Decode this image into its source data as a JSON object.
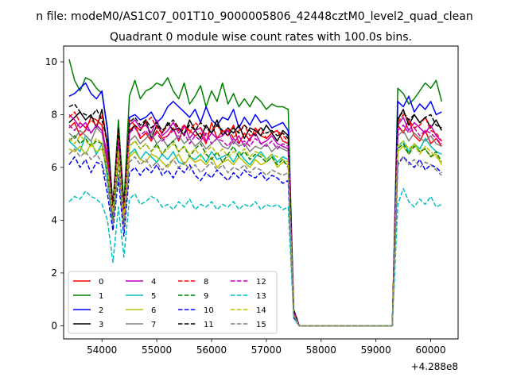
{
  "chart_data": {
    "type": "line",
    "suptitle": "n file: modeM0/AS1C07_001T10_9000005806_42448cztM0_level2_quad_clean",
    "title": "Quadrant 0 module wise count rates with 100.0s bins.",
    "x_offset_label": "+4.288e8",
    "xlim": [
      53300,
      60500
    ],
    "ylim": [
      -0.5,
      10.6
    ],
    "xticks": [
      54000,
      55000,
      56000,
      57000,
      58000,
      59000,
      60000
    ],
    "yticks": [
      0,
      2,
      4,
      6,
      8,
      10
    ],
    "xtick_labels": [
      "54000",
      "55000",
      "56000",
      "57000",
      "58000",
      "59000",
      "60000"
    ],
    "ytick_labels": [
      "0",
      "2",
      "4",
      "6",
      "8",
      "10"
    ],
    "legend_position": "lower-left",
    "x": [
      53400,
      53500,
      53600,
      53700,
      53800,
      53900,
      54000,
      54100,
      54200,
      54300,
      54400,
      54500,
      54600,
      54700,
      54800,
      54900,
      55000,
      55100,
      55200,
      55300,
      55400,
      55500,
      55600,
      55700,
      55800,
      55900,
      56000,
      56100,
      56200,
      56300,
      56400,
      56500,
      56600,
      56700,
      56800,
      56900,
      57000,
      57100,
      57200,
      57300,
      57400,
      57500,
      57600,
      57700,
      57800,
      57900,
      58000,
      58100,
      58200,
      58300,
      58400,
      58500,
      58600,
      58700,
      58800,
      58900,
      59000,
      59100,
      59200,
      59300,
      59400,
      59500,
      59600,
      59700,
      59800,
      59900,
      60000,
      60100,
      60200
    ],
    "series": [
      {
        "name": "0",
        "color": "#ff0000",
        "dash": "solid",
        "values": [
          7.5,
          7.7,
          7.2,
          7.4,
          7.9,
          7.8,
          7.6,
          6.2,
          4.2,
          7.2,
          4.0,
          7.4,
          7.6,
          7.1,
          7.3,
          7.0,
          7.4,
          7.1,
          7.2,
          7.5,
          7.0,
          7.6,
          7.4,
          7.2,
          7.3,
          6.9,
          7.7,
          7.1,
          7.4,
          7.2,
          7.6,
          6.9,
          7.3,
          7.0,
          7.5,
          7.2,
          7.1,
          7.3,
          7.4,
          7.0,
          6.9,
          0.6,
          0,
          0,
          0,
          0,
          0,
          0,
          0,
          0,
          0,
          0,
          0,
          0,
          0,
          0,
          0,
          0,
          0,
          0,
          7.6,
          7.3,
          7.8,
          7.2,
          7.0,
          7.4,
          6.9,
          7.1,
          6.8
        ]
      },
      {
        "name": "1",
        "color": "#008000",
        "dash": "solid",
        "values": [
          10.1,
          9.3,
          8.9,
          9.4,
          9.3,
          9.0,
          8.8,
          7.5,
          4.5,
          7.8,
          4.6,
          8.7,
          9.3,
          8.6,
          8.9,
          9.0,
          9.2,
          9.1,
          9.4,
          8.9,
          8.6,
          9.2,
          8.4,
          8.7,
          9.1,
          8.3,
          8.9,
          8.5,
          9.2,
          8.4,
          8.8,
          8.3,
          8.6,
          8.3,
          8.7,
          8.5,
          8.2,
          8.4,
          8.3,
          8.3,
          8.2,
          0.6,
          0,
          0,
          0,
          0,
          0,
          0,
          0,
          0,
          0,
          0,
          0,
          0,
          0,
          0,
          0,
          0,
          0,
          0,
          9.0,
          8.8,
          8.4,
          8.6,
          8.9,
          9.2,
          9.0,
          9.3,
          8.5
        ]
      },
      {
        "name": "2",
        "color": "#0000ff",
        "dash": "solid",
        "values": [
          8.7,
          8.8,
          9.0,
          9.2,
          8.8,
          8.6,
          8.9,
          7.4,
          4.0,
          7.0,
          3.8,
          7.9,
          8.0,
          7.8,
          7.9,
          8.1,
          7.7,
          7.9,
          8.3,
          8.5,
          8.3,
          8.1,
          7.9,
          8.2,
          7.7,
          8.3,
          7.8,
          7.6,
          7.9,
          7.8,
          8.2,
          7.5,
          7.9,
          7.6,
          8.0,
          7.7,
          7.8,
          7.5,
          7.6,
          7.7,
          7.4,
          0.6,
          0,
          0,
          0,
          0,
          0,
          0,
          0,
          0,
          0,
          0,
          0,
          0,
          0,
          0,
          0,
          0,
          0,
          0,
          8.5,
          8.3,
          8.7,
          8.1,
          8.4,
          8.2,
          8.5,
          8.0,
          8.1
        ]
      },
      {
        "name": "3",
        "color": "#000000",
        "dash": "solid",
        "values": [
          7.7,
          7.9,
          8.1,
          7.8,
          8.0,
          7.5,
          8.2,
          6.8,
          4.4,
          7.2,
          4.2,
          7.3,
          7.6,
          7.4,
          7.8,
          7.1,
          7.6,
          7.3,
          7.7,
          7.4,
          7.5,
          7.2,
          7.8,
          7.4,
          7.1,
          7.6,
          7.3,
          7.8,
          7.2,
          7.5,
          7.3,
          7.6,
          7.1,
          7.5,
          7.4,
          7.2,
          7.6,
          7.3,
          7.0,
          7.4,
          7.2,
          0.6,
          0,
          0,
          0,
          0,
          0,
          0,
          0,
          0,
          0,
          0,
          0,
          0,
          0,
          0,
          0,
          0,
          0,
          0,
          7.8,
          8.2,
          7.6,
          8.0,
          7.7,
          7.9,
          7.5,
          7.8,
          7.4
        ]
      },
      {
        "name": "4",
        "color": "#bf00bf",
        "dash": "solid",
        "values": [
          8.0,
          7.8,
          7.5,
          7.7,
          7.3,
          7.6,
          7.4,
          6.5,
          4.5,
          7.1,
          4.3,
          7.6,
          7.8,
          7.5,
          7.6,
          7.3,
          7.8,
          7.2,
          7.4,
          7.7,
          7.3,
          7.6,
          7.1,
          7.4,
          7.5,
          7.0,
          7.3,
          7.1,
          7.2,
          7.4,
          6.9,
          7.2,
          6.8,
          7.1,
          7.3,
          6.9,
          7.0,
          7.2,
          6.9,
          6.8,
          6.7,
          0.6,
          0,
          0,
          0,
          0,
          0,
          0,
          0,
          0,
          0,
          0,
          0,
          0,
          0,
          0,
          0,
          0,
          0,
          0,
          7.6,
          7.9,
          7.4,
          7.7,
          7.5,
          7.3,
          7.6,
          7.2,
          7.0
        ]
      },
      {
        "name": "5",
        "color": "#00bfbf",
        "dash": "solid",
        "values": [
          7.0,
          6.8,
          6.6,
          7.2,
          7.0,
          6.5,
          6.9,
          5.6,
          3.9,
          6.4,
          3.8,
          6.5,
          6.7,
          6.3,
          6.6,
          6.4,
          6.2,
          6.5,
          6.3,
          6.6,
          6.2,
          6.1,
          6.4,
          6.3,
          6.5,
          6.2,
          6.6,
          6.3,
          6.4,
          6.5,
          6.2,
          6.6,
          6.3,
          6.1,
          6.4,
          6.6,
          6.3,
          6.5,
          6.2,
          6.4,
          6.3,
          0.4,
          0,
          0,
          0,
          0,
          0,
          0,
          0,
          0,
          0,
          0,
          0,
          0,
          0,
          0,
          0,
          0,
          0,
          0,
          6.8,
          7.0,
          6.6,
          6.9,
          6.7,
          7.1,
          6.8,
          6.6,
          6.5
        ]
      },
      {
        "name": "6",
        "color": "#bfbf00",
        "dash": "solid",
        "values": [
          6.7,
          6.6,
          6.8,
          6.5,
          6.9,
          6.6,
          6.7,
          5.9,
          4.3,
          6.3,
          4.1,
          6.4,
          6.6,
          6.3,
          6.2,
          6.5,
          6.4,
          6.2,
          6.0,
          6.3,
          6.5,
          6.1,
          6.4,
          6.2,
          6.3,
          6.1,
          6.4,
          6.0,
          6.2,
          6.3,
          6.1,
          6.4,
          6.2,
          6.0,
          6.3,
          6.1,
          6.2,
          6.4,
          6.0,
          6.2,
          6.1,
          0.4,
          0,
          0,
          0,
          0,
          0,
          0,
          0,
          0,
          0,
          0,
          0,
          0,
          0,
          0,
          0,
          0,
          0,
          0,
          6.6,
          6.8,
          6.5,
          6.9,
          6.6,
          6.7,
          6.4,
          6.5,
          6.1
        ]
      },
      {
        "name": "7",
        "color": "#808080",
        "dash": "solid",
        "values": [
          7.3,
          7.1,
          7.4,
          7.2,
          7.0,
          7.5,
          7.3,
          6.0,
          4.4,
          6.8,
          4.2,
          7.0,
          7.2,
          6.9,
          7.1,
          7.3,
          6.9,
          7.1,
          6.8,
          7.0,
          7.2,
          6.9,
          7.1,
          6.8,
          7.0,
          6.7,
          6.9,
          7.1,
          6.8,
          6.7,
          7.0,
          6.8,
          6.9,
          6.6,
          6.8,
          6.7,
          6.9,
          6.6,
          6.8,
          6.7,
          6.6,
          0.5,
          0,
          0,
          0,
          0,
          0,
          0,
          0,
          0,
          0,
          0,
          0,
          0,
          0,
          0,
          0,
          0,
          0,
          0,
          7.2,
          7.4,
          7.0,
          7.3,
          7.1,
          7.0,
          7.2,
          6.9,
          6.8
        ]
      },
      {
        "name": "8",
        "color": "#ff0000",
        "dash": "dashed",
        "values": [
          7.9,
          8.1,
          7.7,
          7.5,
          7.8,
          7.6,
          8.0,
          6.8,
          4.3,
          7.3,
          4.1,
          7.8,
          7.6,
          7.4,
          7.7,
          7.9,
          7.5,
          7.3,
          7.6,
          7.8,
          7.4,
          7.6,
          7.3,
          7.7,
          7.5,
          7.2,
          7.4,
          7.6,
          7.3,
          7.5,
          7.1,
          7.4,
          7.6,
          7.2,
          7.3,
          7.5,
          7.1,
          7.3,
          7.4,
          7.2,
          7.0,
          0.6,
          0,
          0,
          0,
          0,
          0,
          0,
          0,
          0,
          0,
          0,
          0,
          0,
          0,
          0,
          0,
          0,
          0,
          0,
          7.7,
          8.0,
          7.8,
          7.5,
          7.6,
          7.9,
          7.4,
          7.3,
          7.0
        ]
      },
      {
        "name": "9",
        "color": "#008000",
        "dash": "dashed",
        "values": [
          7.0,
          7.2,
          6.9,
          7.1,
          6.8,
          7.0,
          6.9,
          5.8,
          4.0,
          6.5,
          3.9,
          6.8,
          7.0,
          6.7,
          6.9,
          6.6,
          6.9,
          6.5,
          6.8,
          7.0,
          6.6,
          6.8,
          6.4,
          6.7,
          6.9,
          6.5,
          6.3,
          6.6,
          6.2,
          6.5,
          6.8,
          6.4,
          6.6,
          6.3,
          6.5,
          6.4,
          6.2,
          6.4,
          6.1,
          6.3,
          6.0,
          0.4,
          0,
          0,
          0,
          0,
          0,
          0,
          0,
          0,
          0,
          0,
          0,
          0,
          0,
          0,
          0,
          0,
          0,
          0,
          6.7,
          6.9,
          6.5,
          6.8,
          6.6,
          6.7,
          6.4,
          6.6,
          6.2
        ]
      },
      {
        "name": "10",
        "color": "#0000ff",
        "dash": "dashed",
        "values": [
          6.1,
          6.4,
          6.0,
          6.3,
          5.8,
          6.2,
          6.1,
          5.0,
          3.6,
          5.6,
          3.4,
          5.8,
          6.0,
          5.7,
          6.0,
          5.8,
          6.1,
          5.7,
          5.9,
          5.6,
          6.0,
          5.8,
          6.1,
          5.7,
          5.5,
          5.8,
          5.6,
          5.9,
          5.7,
          5.5,
          5.8,
          5.6,
          5.9,
          5.7,
          5.6,
          5.8,
          5.5,
          5.7,
          5.6,
          5.4,
          5.5,
          0.3,
          0,
          0,
          0,
          0,
          0,
          0,
          0,
          0,
          0,
          0,
          0,
          0,
          0,
          0,
          0,
          0,
          0,
          0,
          6.1,
          6.4,
          6.2,
          6.0,
          6.3,
          5.9,
          6.1,
          6.0,
          5.8
        ]
      },
      {
        "name": "11",
        "color": "#000000",
        "dash": "dashed",
        "values": [
          8.3,
          8.4,
          8.1,
          8.0,
          7.9,
          8.2,
          7.8,
          7.0,
          4.6,
          7.5,
          4.4,
          7.7,
          7.9,
          7.6,
          7.8,
          7.5,
          7.7,
          7.4,
          7.6,
          7.8,
          7.5,
          7.3,
          7.6,
          7.4,
          7.7,
          7.5,
          7.3,
          7.6,
          7.4,
          7.2,
          7.5,
          7.3,
          7.6,
          7.4,
          7.2,
          7.5,
          7.3,
          7.4,
          7.2,
          7.3,
          7.1,
          0.6,
          0,
          0,
          0,
          0,
          0,
          0,
          0,
          0,
          0,
          0,
          0,
          0,
          0,
          0,
          0,
          0,
          0,
          0,
          7.9,
          8.1,
          7.8,
          8.0,
          7.7,
          7.9,
          8.0,
          7.6,
          7.5
        ]
      },
      {
        "name": "12",
        "color": "#bf00bf",
        "dash": "dashed",
        "values": [
          7.6,
          7.4,
          7.7,
          7.5,
          7.3,
          7.6,
          7.4,
          6.2,
          4.2,
          7.0,
          4.0,
          7.3,
          7.5,
          7.2,
          7.4,
          7.1,
          7.3,
          7.0,
          7.2,
          7.4,
          7.1,
          7.3,
          6.9,
          7.2,
          7.0,
          7.3,
          6.9,
          7.1,
          7.0,
          6.8,
          7.1,
          6.9,
          7.0,
          6.8,
          7.1,
          6.9,
          6.8,
          7.0,
          6.7,
          6.9,
          6.8,
          0.5,
          0,
          0,
          0,
          0,
          0,
          0,
          0,
          0,
          0,
          0,
          0,
          0,
          0,
          0,
          0,
          0,
          0,
          0,
          7.4,
          7.6,
          7.3,
          7.5,
          7.2,
          7.4,
          7.3,
          7.1,
          6.9
        ]
      },
      {
        "name": "13",
        "color": "#00bfbf",
        "dash": "dashed",
        "values": [
          4.7,
          4.9,
          4.8,
          5.1,
          4.9,
          4.8,
          4.6,
          4.0,
          2.4,
          4.5,
          2.6,
          4.8,
          5.0,
          4.6,
          4.7,
          4.9,
          4.8,
          4.5,
          4.6,
          4.4,
          4.7,
          4.5,
          4.8,
          4.4,
          4.6,
          4.5,
          4.7,
          4.4,
          4.6,
          4.5,
          4.7,
          4.4,
          4.6,
          4.5,
          4.7,
          4.4,
          4.6,
          4.5,
          4.6,
          4.4,
          4.5,
          0.3,
          0,
          0,
          0,
          0,
          0,
          0,
          0,
          0,
          0,
          0,
          0,
          0,
          0,
          0,
          0,
          0,
          0,
          0,
          4.6,
          5.2,
          4.7,
          4.5,
          4.8,
          4.6,
          4.9,
          4.5,
          4.6
        ]
      },
      {
        "name": "14",
        "color": "#bfbf00",
        "dash": "dashed",
        "values": [
          7.1,
          6.9,
          7.2,
          7.0,
          6.8,
          7.1,
          6.9,
          5.9,
          4.3,
          6.6,
          4.1,
          6.8,
          7.0,
          6.7,
          6.9,
          6.6,
          6.8,
          6.5,
          6.7,
          6.9,
          6.6,
          6.8,
          6.5,
          6.7,
          6.4,
          6.6,
          6.8,
          6.5,
          6.7,
          6.4,
          6.6,
          6.5,
          6.7,
          6.4,
          6.6,
          6.5,
          6.3,
          6.5,
          6.4,
          6.3,
          6.2,
          0.4,
          0,
          0,
          0,
          0,
          0,
          0,
          0,
          0,
          0,
          0,
          0,
          0,
          0,
          0,
          0,
          0,
          0,
          0,
          6.8,
          7.0,
          6.7,
          6.9,
          6.5,
          6.8,
          6.6,
          6.4,
          6.2
        ]
      },
      {
        "name": "15",
        "color": "#808080",
        "dash": "dashed",
        "values": [
          6.5,
          6.7,
          6.4,
          6.6,
          6.3,
          6.5,
          6.2,
          5.4,
          3.8,
          5.9,
          3.6,
          6.2,
          6.4,
          6.1,
          6.3,
          6.0,
          6.2,
          5.9,
          6.1,
          6.3,
          6.0,
          6.2,
          5.9,
          6.1,
          5.8,
          6.0,
          6.2,
          5.9,
          6.1,
          5.8,
          6.0,
          5.9,
          6.1,
          5.8,
          6.0,
          5.9,
          5.7,
          5.9,
          5.8,
          5.7,
          5.8,
          0.4,
          0,
          0,
          0,
          0,
          0,
          0,
          0,
          0,
          0,
          0,
          0,
          0,
          0,
          0,
          0,
          0,
          0,
          0,
          6.2,
          6.4,
          6.1,
          6.3,
          6.0,
          6.2,
          6.1,
          5.9,
          5.7
        ]
      }
    ]
  }
}
